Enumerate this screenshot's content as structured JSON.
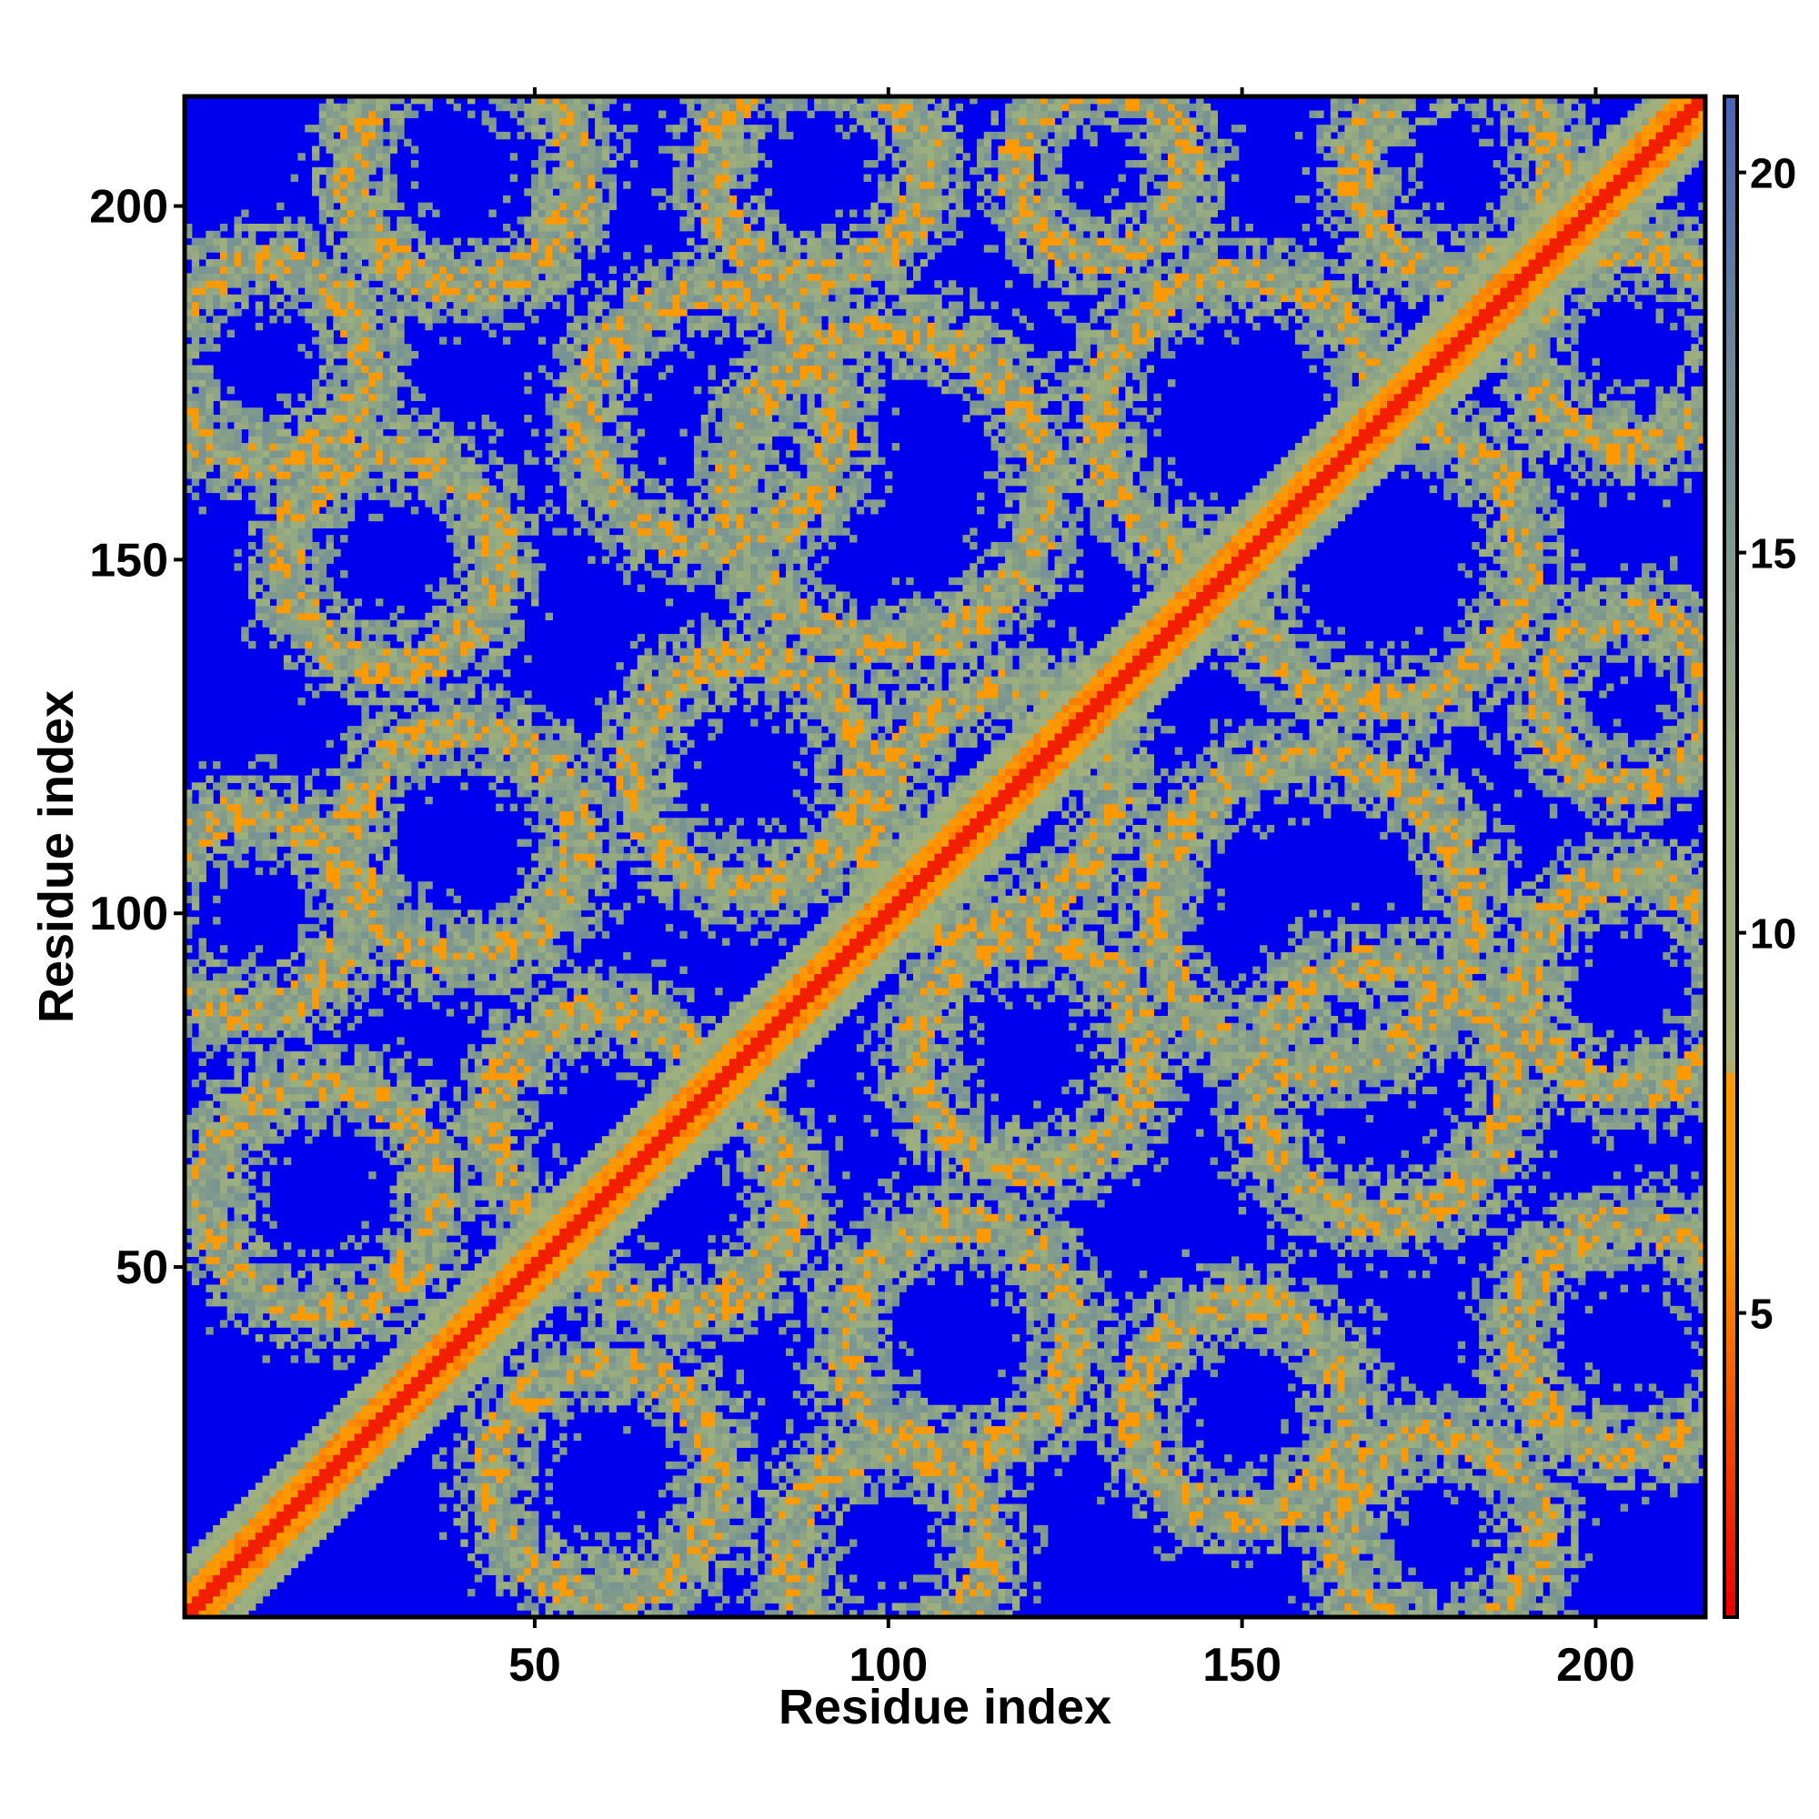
{
  "chart_data": {
    "type": "heatmap",
    "title": "",
    "xlabel": "Residue index",
    "ylabel": "Residue index",
    "n_residues": 215,
    "xlim": [
      1,
      215
    ],
    "ylim": [
      1,
      215
    ],
    "x_ticks": [
      50,
      100,
      150,
      200
    ],
    "y_ticks": [
      50,
      100,
      150,
      200
    ],
    "colorbar": {
      "range": [
        1,
        21
      ],
      "ticks": [
        5,
        10,
        15,
        20
      ],
      "colors": {
        "low": "#ee0000",
        "mid_low": "#ff9900",
        "mid": "#9aae7e",
        "mid_high": "#5f7fa0",
        "high": "#0000ee"
      },
      "stops": [
        {
          "value": 1,
          "color": "#ee0000"
        },
        {
          "value": 6,
          "color": "#ff9900"
        },
        {
          "value": 8,
          "color": "#ff9900"
        },
        {
          "value": 8.2,
          "color": "#a8b27c"
        },
        {
          "value": 12,
          "color": "#9aae7e"
        },
        {
          "value": 17,
          "color": "#6f8c98"
        },
        {
          "value": 21,
          "color": "#4a64b8"
        }
      ]
    },
    "background_color": "#0000ee",
    "grid": false,
    "legend": "colorbar-right"
  }
}
